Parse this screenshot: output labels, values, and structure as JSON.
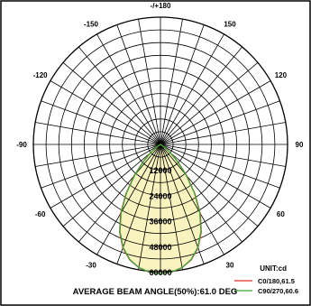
{
  "chart_data": {
    "type": "polar-light-distribution",
    "angle_labels": [
      {
        "angle": 180,
        "text": "-/+180"
      },
      {
        "angle": -150,
        "text": "-150"
      },
      {
        "angle": 150,
        "text": "150"
      },
      {
        "angle": -120,
        "text": "-120"
      },
      {
        "angle": 120,
        "text": "120"
      },
      {
        "angle": -90,
        "text": "-90"
      },
      {
        "angle": 90,
        "text": "90"
      },
      {
        "angle": -60,
        "text": "-60"
      },
      {
        "angle": 60,
        "text": "60"
      },
      {
        "angle": -30,
        "text": "-30"
      },
      {
        "angle": 30,
        "text": "30"
      }
    ],
    "radial_ticks": [
      12000,
      24000,
      36000,
      48000,
      60000
    ],
    "radial_tick_labels": [
      "12000",
      "24000",
      "36000",
      "48000",
      "60000"
    ],
    "r_max": 60000,
    "unit_label": "UNIT:cd",
    "footer": "AVERAGE BEAM ANGLE(50%):61.0 DEG",
    "series": [
      {
        "name": "C0/180,61.5",
        "color": "#e0302a",
        "points": [
          [
            -60,
            600
          ],
          [
            -55,
            2600
          ],
          [
            -50,
            6300
          ],
          [
            -45,
            11800
          ],
          [
            -40,
            19300
          ],
          [
            -35,
            28400
          ],
          [
            -30,
            37600
          ],
          [
            -25,
            45600
          ],
          [
            -20,
            51900
          ],
          [
            -15,
            56300
          ],
          [
            -10,
            59000
          ],
          [
            -5,
            60500
          ],
          [
            0,
            61000
          ],
          [
            5,
            60500
          ],
          [
            10,
            59000
          ],
          [
            15,
            56300
          ],
          [
            20,
            51900
          ],
          [
            25,
            45600
          ],
          [
            30,
            37600
          ],
          [
            35,
            28400
          ],
          [
            40,
            19300
          ],
          [
            45,
            11800
          ],
          [
            50,
            6300
          ],
          [
            55,
            2600
          ],
          [
            60,
            600
          ]
        ]
      },
      {
        "name": "C90/270,60.6",
        "color": "#3aa83a",
        "points": [
          [
            -60,
            500
          ],
          [
            -55,
            2400
          ],
          [
            -50,
            6000
          ],
          [
            -45,
            11400
          ],
          [
            -40,
            18800
          ],
          [
            -35,
            27900
          ],
          [
            -30,
            37100
          ],
          [
            -25,
            45200
          ],
          [
            -20,
            51600
          ],
          [
            -15,
            56100
          ],
          [
            -10,
            58900
          ],
          [
            -5,
            60400
          ],
          [
            0,
            61000
          ],
          [
            5,
            60400
          ],
          [
            10,
            58900
          ],
          [
            15,
            56100
          ],
          [
            20,
            51600
          ],
          [
            25,
            45200
          ],
          [
            30,
            37100
          ],
          [
            35,
            27900
          ],
          [
            40,
            18800
          ],
          [
            45,
            11400
          ],
          [
            50,
            6000
          ],
          [
            55,
            2400
          ],
          [
            60,
            500
          ]
        ]
      }
    ]
  }
}
